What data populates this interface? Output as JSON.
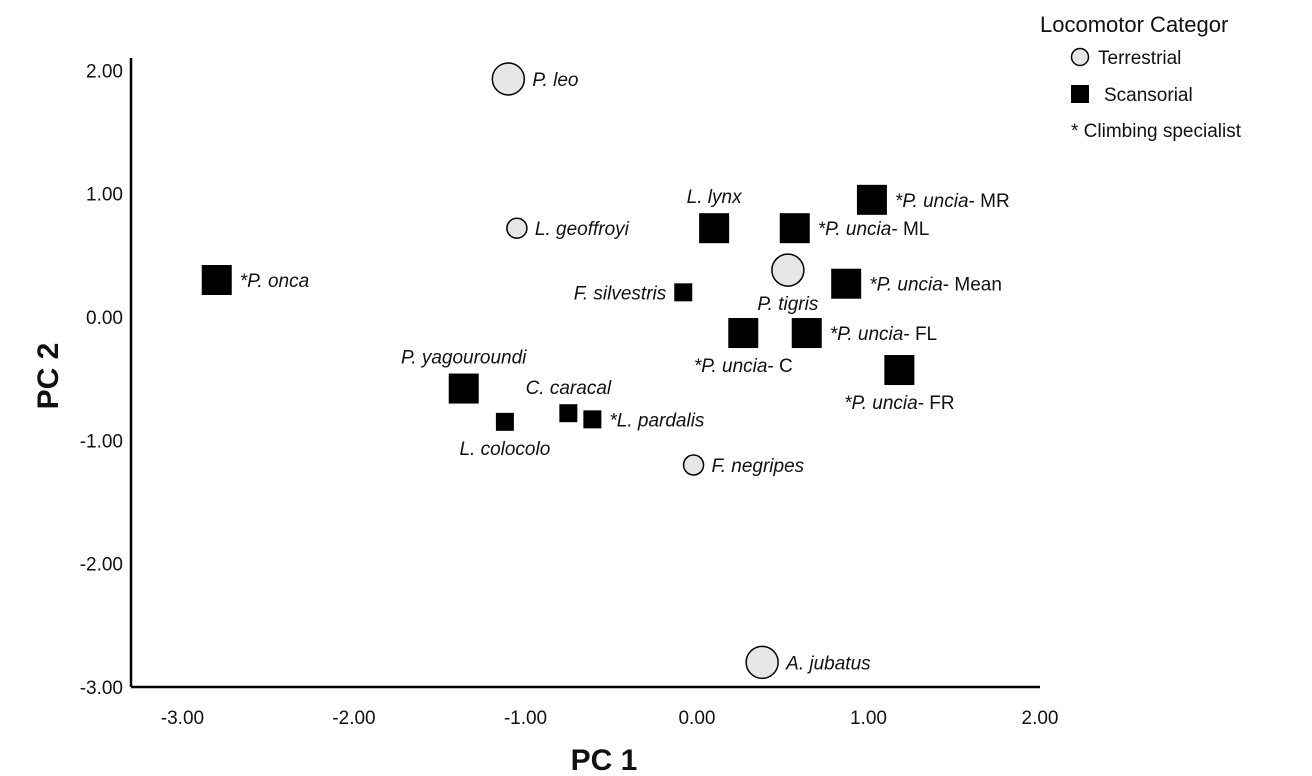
{
  "chart_data": {
    "type": "scatter",
    "xlabel": "PC 1",
    "ylabel": "PC 2",
    "xlim": [
      -3.3,
      2.0
    ],
    "ylim": [
      -3.0,
      2.1
    ],
    "xticks": [
      "-3.00",
      "-2.00",
      "-1.00",
      "0.00",
      "1.00",
      "2.00"
    ],
    "xtick_values": [
      -3,
      -2,
      -1,
      0,
      1,
      2
    ],
    "yticks": [
      "2.00",
      "1.00",
      "0.00",
      "-1.00",
      "-2.00",
      "-3.00"
    ],
    "ytick_values": [
      2,
      1,
      0,
      -1,
      -2,
      -3
    ],
    "grid": false,
    "legend": {
      "title": "Locomotor Categor",
      "placement": "top-right",
      "entries": [
        {
          "marker": "circle",
          "label": "Terrestrial"
        },
        {
          "marker": "square",
          "label": "Scansorial"
        },
        {
          "marker": "text",
          "label": "* Climbing specialist"
        }
      ]
    },
    "colors": {
      "terrestrial_fill": "#e6e6e6",
      "scansorial_fill": "#000000",
      "stroke": "#000000"
    },
    "points": [
      {
        "x": -1.1,
        "y": 1.93,
        "category": "Terrestrial",
        "size": "large",
        "label_prefix": "",
        "species": "P. leo",
        "suffix": "",
        "label_pos": "right"
      },
      {
        "x": -1.05,
        "y": 0.72,
        "category": "Terrestrial",
        "size": "small",
        "label_prefix": "",
        "species": "L. geoffroyi",
        "suffix": "",
        "label_pos": "right"
      },
      {
        "x": 0.53,
        "y": 0.38,
        "category": "Terrestrial",
        "size": "large",
        "label_prefix": "",
        "species": "P. tigris",
        "suffix": "",
        "label_pos": "below"
      },
      {
        "x": -0.02,
        "y": -1.2,
        "category": "Terrestrial",
        "size": "small",
        "label_prefix": "",
        "species": "F. negripes",
        "suffix": "",
        "label_pos": "right"
      },
      {
        "x": 0.38,
        "y": -2.8,
        "category": "Terrestrial",
        "size": "large",
        "label_prefix": "",
        "species": "A. jubatus",
        "suffix": "",
        "label_pos": "right"
      },
      {
        "x": -2.8,
        "y": 0.3,
        "category": "Scansorial",
        "size": "large",
        "label_prefix": "*",
        "species": "P. onca",
        "suffix": "",
        "label_pos": "right"
      },
      {
        "x": 0.1,
        "y": 0.72,
        "category": "Scansorial",
        "size": "large",
        "label_prefix": "",
        "species": "L. lynx",
        "suffix": "",
        "label_pos": "above"
      },
      {
        "x": 0.57,
        "y": 0.72,
        "category": "Scansorial",
        "size": "large",
        "label_prefix": "*",
        "species": "P. uncia",
        "suffix": "- ML",
        "label_pos": "right"
      },
      {
        "x": 1.02,
        "y": 0.95,
        "category": "Scansorial",
        "size": "large",
        "label_prefix": "*",
        "species": "P. uncia",
        "suffix": "- MR",
        "label_pos": "right"
      },
      {
        "x": 0.87,
        "y": 0.27,
        "category": "Scansorial",
        "size": "large",
        "label_prefix": "*",
        "species": "P. uncia",
        "suffix": "- Mean",
        "label_pos": "right"
      },
      {
        "x": -0.08,
        "y": 0.2,
        "category": "Scansorial",
        "size": "small",
        "label_prefix": "",
        "species": "F. silvestris",
        "suffix": "",
        "label_pos": "left"
      },
      {
        "x": 0.27,
        "y": -0.13,
        "category": "Scansorial",
        "size": "large",
        "label_prefix": "*",
        "species": "P. uncia",
        "suffix": "- C",
        "label_pos": "below"
      },
      {
        "x": 0.64,
        "y": -0.13,
        "category": "Scansorial",
        "size": "large",
        "label_prefix": "*",
        "species": "P. uncia",
        "suffix": "- FL",
        "label_pos": "right"
      },
      {
        "x": 1.18,
        "y": -0.43,
        "category": "Scansorial",
        "size": "large",
        "label_prefix": "*",
        "species": "P. uncia",
        "suffix": "- FR",
        "label_pos": "below"
      },
      {
        "x": -1.36,
        "y": -0.58,
        "category": "Scansorial",
        "size": "large",
        "label_prefix": "",
        "species": "P. yagouroundi",
        "suffix": "",
        "label_pos": "above"
      },
      {
        "x": -1.12,
        "y": -0.85,
        "category": "Scansorial",
        "size": "small",
        "label_prefix": "",
        "species": "L. colocolo",
        "suffix": "",
        "label_pos": "below"
      },
      {
        "x": -0.75,
        "y": -0.78,
        "category": "Scansorial",
        "size": "small",
        "label_prefix": "",
        "species": "C. caracal",
        "suffix": "",
        "label_pos": "above"
      },
      {
        "x": -0.61,
        "y": -0.83,
        "category": "Scansorial",
        "size": "small",
        "label_prefix": "*",
        "species": "L. pardalis",
        "suffix": "",
        "label_pos": "right"
      }
    ]
  }
}
